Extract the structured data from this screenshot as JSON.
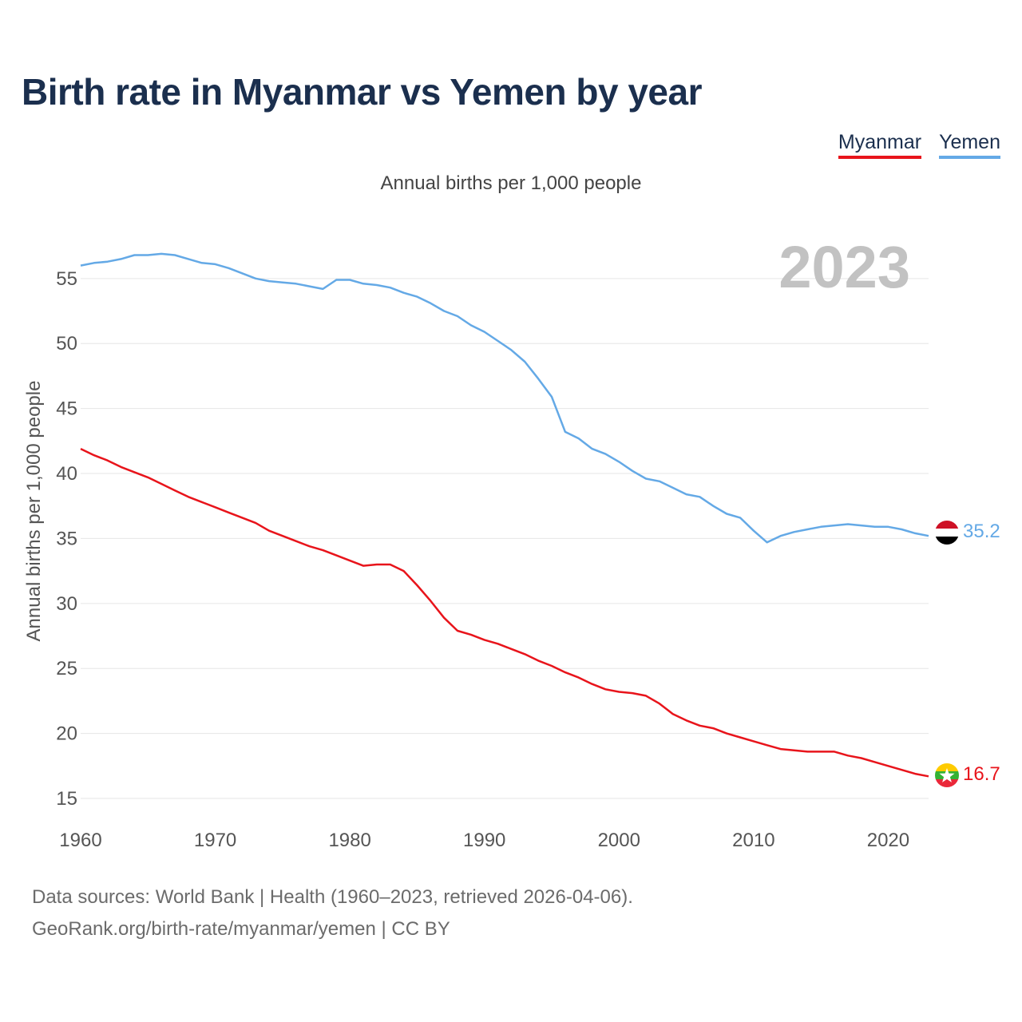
{
  "title": "Birth rate in Myanmar vs Yemen by year",
  "legend": [
    {
      "label": "Myanmar",
      "color": "#e8141b"
    },
    {
      "label": "Yemen",
      "color": "#64a9e6"
    }
  ],
  "subtitle": "Annual births per 1,000 people",
  "year_watermark": "2023",
  "footer": {
    "line1": "Data sources: World Bank | Health (1960–2023, retrieved 2026-04-06).",
    "line2": "GeoRank.org/birth-rate/myanmar/yemen | CC BY"
  },
  "chart_data": {
    "type": "line",
    "title": "Birth rate in Myanmar vs Yemen by year",
    "xlabel": "",
    "ylabel": "Annual births per 1,000 people",
    "xlim": [
      1960,
      2023
    ],
    "ylim": [
      15,
      58
    ],
    "x_ticks": [
      1960,
      1970,
      1980,
      1990,
      2000,
      2010,
      2020
    ],
    "y_ticks": [
      15,
      20,
      25,
      30,
      35,
      40,
      45,
      50,
      55
    ],
    "grid": true,
    "x": [
      1960,
      1961,
      1962,
      1963,
      1964,
      1965,
      1966,
      1967,
      1968,
      1969,
      1970,
      1971,
      1972,
      1973,
      1974,
      1975,
      1976,
      1977,
      1978,
      1979,
      1980,
      1981,
      1982,
      1983,
      1984,
      1985,
      1986,
      1987,
      1988,
      1989,
      1990,
      1991,
      1992,
      1993,
      1994,
      1995,
      1996,
      1997,
      1998,
      1999,
      2000,
      2001,
      2002,
      2003,
      2004,
      2005,
      2006,
      2007,
      2008,
      2009,
      2010,
      2011,
      2012,
      2013,
      2014,
      2015,
      2016,
      2017,
      2018,
      2019,
      2020,
      2021,
      2022,
      2023
    ],
    "series": [
      {
        "name": "Myanmar",
        "color": "#e8141b",
        "end_label": "16.7",
        "values": [
          41.9,
          41.4,
          41.0,
          40.5,
          40.1,
          39.7,
          39.2,
          38.7,
          38.2,
          37.8,
          37.4,
          37.0,
          36.6,
          36.2,
          35.6,
          35.2,
          34.8,
          34.4,
          34.1,
          33.7,
          33.3,
          32.9,
          33.0,
          33.0,
          32.5,
          31.4,
          30.2,
          28.9,
          27.9,
          27.6,
          27.2,
          26.9,
          26.5,
          26.1,
          25.6,
          25.2,
          24.7,
          24.3,
          23.8,
          23.4,
          23.2,
          23.1,
          22.9,
          22.3,
          21.5,
          21.0,
          20.6,
          20.4,
          20.0,
          19.7,
          19.4,
          19.1,
          18.8,
          18.7,
          18.6,
          18.6,
          18.6,
          18.3,
          18.1,
          17.8,
          17.5,
          17.2,
          16.9,
          16.7
        ]
      },
      {
        "name": "Yemen",
        "color": "#64a9e6",
        "end_label": "35.2",
        "values": [
          56.0,
          56.2,
          56.3,
          56.5,
          56.8,
          56.8,
          56.9,
          56.8,
          56.5,
          56.2,
          56.1,
          55.8,
          55.4,
          55.0,
          54.8,
          54.7,
          54.6,
          54.4,
          54.2,
          54.9,
          54.9,
          54.6,
          54.5,
          54.3,
          53.9,
          53.6,
          53.1,
          52.5,
          52.1,
          51.4,
          50.9,
          50.2,
          49.5,
          48.6,
          47.3,
          45.9,
          43.2,
          42.7,
          41.9,
          41.5,
          40.9,
          40.2,
          39.6,
          39.4,
          38.9,
          38.4,
          38.2,
          37.5,
          36.9,
          36.6,
          35.6,
          34.7,
          35.2,
          35.5,
          35.7,
          35.9,
          36.0,
          36.1,
          36.0,
          35.9,
          35.9,
          35.7,
          35.4,
          35.2
        ]
      }
    ]
  }
}
